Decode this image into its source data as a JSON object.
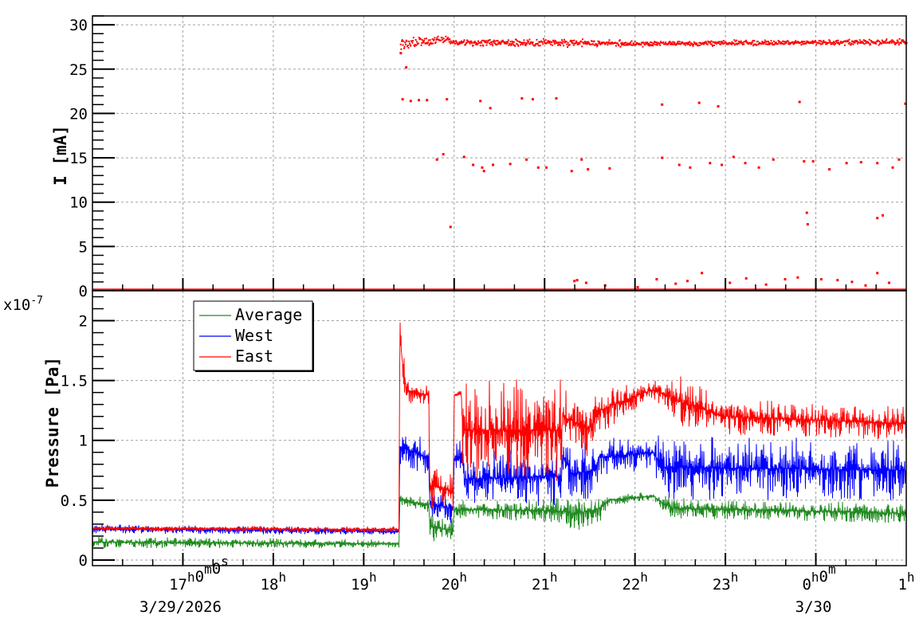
{
  "chart_data": [
    {
      "type": "scatter",
      "name": "current",
      "ylabel": "I [mA]",
      "xlim_hours": [
        16,
        25
      ],
      "ylim": [
        0,
        31
      ],
      "yticks": [
        0,
        5,
        10,
        15,
        20,
        25,
        30
      ],
      "ytick_labels": [
        "0",
        "5",
        "10",
        "15",
        "20",
        "25",
        "30"
      ],
      "grid": true,
      "color": "#ff0000",
      "zero_baseline": {
        "from": 16,
        "to": 25,
        "value": 0
      },
      "main_band": [
        [
          19.4,
          26.6,
          28.6
        ],
        [
          19.5,
          27.2,
          28.7
        ],
        [
          19.9,
          27.8,
          28.8
        ],
        [
          20.0,
          27.5,
          28.4
        ],
        [
          21.3,
          27.4,
          28.6
        ],
        [
          22.0,
          27.5,
          28.2
        ],
        [
          25.0,
          27.6,
          28.5
        ]
      ],
      "outliers": [
        [
          19.41,
          26.8
        ],
        [
          19.47,
          25.2
        ],
        [
          19.43,
          21.6
        ],
        [
          19.52,
          21.4
        ],
        [
          19.61,
          21.5
        ],
        [
          19.7,
          21.5
        ],
        [
          19.92,
          21.6
        ],
        [
          20.29,
          21.4
        ],
        [
          20.4,
          20.6
        ],
        [
          20.75,
          21.7
        ],
        [
          20.87,
          21.6
        ],
        [
          21.13,
          21.7
        ],
        [
          22.3,
          21.0
        ],
        [
          22.71,
          21.2
        ],
        [
          22.92,
          20.8
        ],
        [
          23.82,
          21.3
        ],
        [
          24.99,
          21.1
        ],
        [
          19.81,
          14.8
        ],
        [
          19.88,
          15.4
        ],
        [
          19.96,
          7.2
        ],
        [
          20.11,
          15.1
        ],
        [
          20.21,
          14.2
        ],
        [
          20.31,
          13.9
        ],
        [
          20.33,
          13.5
        ],
        [
          20.43,
          14.2
        ],
        [
          20.62,
          14.3
        ],
        [
          20.8,
          14.8
        ],
        [
          20.93,
          13.9
        ],
        [
          21.02,
          13.9
        ],
        [
          21.3,
          13.5
        ],
        [
          21.41,
          14.8
        ],
        [
          21.48,
          13.7
        ],
        [
          21.72,
          13.8
        ],
        [
          22.3,
          15.0
        ],
        [
          22.49,
          14.2
        ],
        [
          22.61,
          13.9
        ],
        [
          22.83,
          14.4
        ],
        [
          22.96,
          14.2
        ],
        [
          23.09,
          15.1
        ],
        [
          23.22,
          14.4
        ],
        [
          23.37,
          13.9
        ],
        [
          23.53,
          14.8
        ],
        [
          23.87,
          14.6
        ],
        [
          23.97,
          14.6
        ],
        [
          24.15,
          13.7
        ],
        [
          24.34,
          14.4
        ],
        [
          24.5,
          14.5
        ],
        [
          24.68,
          14.4
        ],
        [
          24.85,
          13.9
        ],
        [
          24.92,
          14.8
        ],
        [
          23.9,
          8.8
        ],
        [
          23.91,
          7.5
        ],
        [
          24.68,
          8.2
        ],
        [
          24.74,
          8.5
        ],
        [
          21.33,
          1.1
        ],
        [
          21.46,
          0.9
        ],
        [
          21.67,
          0.6
        ],
        [
          22.03,
          0.4
        ],
        [
          22.24,
          1.3
        ],
        [
          22.58,
          1.1
        ],
        [
          22.74,
          2.0
        ],
        [
          23.23,
          1.4
        ],
        [
          23.66,
          1.3
        ],
        [
          23.8,
          1.5
        ],
        [
          24.06,
          1.3
        ],
        [
          24.24,
          1.2
        ],
        [
          24.68,
          2.0
        ],
        [
          24.81,
          0.9
        ],
        [
          21.36,
          1.2
        ],
        [
          22.45,
          0.8
        ],
        [
          23.05,
          0.9
        ],
        [
          23.45,
          0.7
        ],
        [
          24.4,
          1.0
        ],
        [
          24.55,
          0.6
        ]
      ]
    },
    {
      "type": "line",
      "name": "pressure",
      "ylabel": "Pressure [Pa]",
      "y_multiplier": "x10",
      "y_multiplier_exp": "-7",
      "xlim_hours": [
        16,
        25
      ],
      "ylim": [
        -0.047,
        2.25
      ],
      "yticks": [
        0,
        0.5,
        1,
        1.5,
        2
      ],
      "ytick_labels": [
        "0",
        "0.5",
        "1",
        "1.5",
        "2"
      ],
      "grid": true,
      "legend": {
        "position": "top-left",
        "entries": [
          "Average",
          "West",
          "East"
        ]
      },
      "note": "series given as envelopes [hour, low, high] in units of 1e-7 Pa",
      "series": [
        {
          "name": "Average",
          "color": "#228b22",
          "envelope": [
            [
              16,
              0.1,
              0.2
            ],
            [
              19.39,
              0.1,
              0.17
            ],
            [
              19.4,
              0.45,
              0.57
            ],
            [
              19.72,
              0.4,
              0.52
            ],
            [
              19.73,
              0.15,
              0.4
            ],
            [
              19.99,
              0.15,
              0.35
            ],
            [
              20.0,
              0.35,
              0.5
            ],
            [
              21.2,
              0.3,
              0.52
            ],
            [
              21.3,
              0.22,
              0.55
            ],
            [
              21.6,
              0.3,
              0.55
            ],
            [
              21.7,
              0.45,
              0.55
            ],
            [
              22.2,
              0.5,
              0.57
            ],
            [
              22.4,
              0.35,
              0.52
            ],
            [
              25,
              0.3,
              0.48
            ]
          ]
        },
        {
          "name": "West",
          "color": "#0000ff",
          "envelope": [
            [
              16,
              0.22,
              0.3
            ],
            [
              19.39,
              0.21,
              0.27
            ],
            [
              19.4,
              0.8,
              1.1
            ],
            [
              19.72,
              0.7,
              1.0
            ],
            [
              19.73,
              0.35,
              0.6
            ],
            [
              19.99,
              0.3,
              0.55
            ],
            [
              20.0,
              0.7,
              1.0
            ],
            [
              20.1,
              0.75,
              1.0
            ],
            [
              20.11,
              0.45,
              0.9
            ],
            [
              21.19,
              0.45,
              0.95
            ],
            [
              21.2,
              0.75,
              1.0
            ],
            [
              21.3,
              0.5,
              0.95
            ],
            [
              21.55,
              0.5,
              1.0
            ],
            [
              21.6,
              0.7,
              1.02
            ],
            [
              22.2,
              0.75,
              1.05
            ],
            [
              22.3,
              0.5,
              1.05
            ],
            [
              25,
              0.5,
              1.0
            ]
          ]
        },
        {
          "name": "East",
          "color": "#ff0000",
          "envelope": [
            [
              16,
              0.24,
              0.29
            ],
            [
              19.39,
              0.23,
              0.28
            ],
            [
              19.4,
              1.9,
              2.1
            ],
            [
              19.42,
              1.55,
              1.85
            ],
            [
              19.47,
              1.3,
              1.55
            ],
            [
              19.72,
              1.3,
              1.45
            ],
            [
              19.73,
              0.4,
              0.85
            ],
            [
              19.99,
              0.35,
              0.8
            ],
            [
              20.0,
              1.35,
              1.4
            ],
            [
              20.08,
              1.36,
              1.42
            ],
            [
              20.09,
              0.65,
              1.52
            ],
            [
              21.19,
              0.65,
              1.52
            ],
            [
              21.2,
              0.95,
              1.45
            ],
            [
              21.35,
              0.9,
              1.4
            ],
            [
              21.5,
              0.85,
              1.35
            ],
            [
              21.6,
              1.05,
              1.45
            ],
            [
              22.2,
              1.35,
              1.5
            ],
            [
              22.5,
              1.1,
              1.55
            ],
            [
              23.0,
              1.05,
              1.35
            ],
            [
              25,
              1.0,
              1.28
            ]
          ]
        }
      ]
    }
  ],
  "x_axis": {
    "ticks": [
      {
        "hour": 17,
        "parts": [
          [
            "17",
            "h"
          ],
          [
            "0",
            "m"
          ],
          [
            "0",
            "s"
          ]
        ]
      },
      {
        "hour": 18,
        "parts": [
          [
            "18",
            "h"
          ]
        ]
      },
      {
        "hour": 19,
        "parts": [
          [
            "19",
            "h"
          ]
        ]
      },
      {
        "hour": 20,
        "parts": [
          [
            "20",
            "h"
          ]
        ]
      },
      {
        "hour": 21,
        "parts": [
          [
            "21",
            "h"
          ]
        ]
      },
      {
        "hour": 22,
        "parts": [
          [
            "22",
            "h"
          ]
        ]
      },
      {
        "hour": 23,
        "parts": [
          [
            "23",
            "h"
          ]
        ]
      },
      {
        "hour": 24,
        "parts": [
          [
            "0",
            "h"
          ],
          [
            "0",
            "m"
          ]
        ]
      },
      {
        "hour": 25,
        "parts": [
          [
            "1",
            "h"
          ]
        ]
      }
    ],
    "dates": [
      {
        "hour": 17,
        "text": "3/29/2026"
      },
      {
        "hour": 24,
        "text": "3/30"
      }
    ]
  }
}
